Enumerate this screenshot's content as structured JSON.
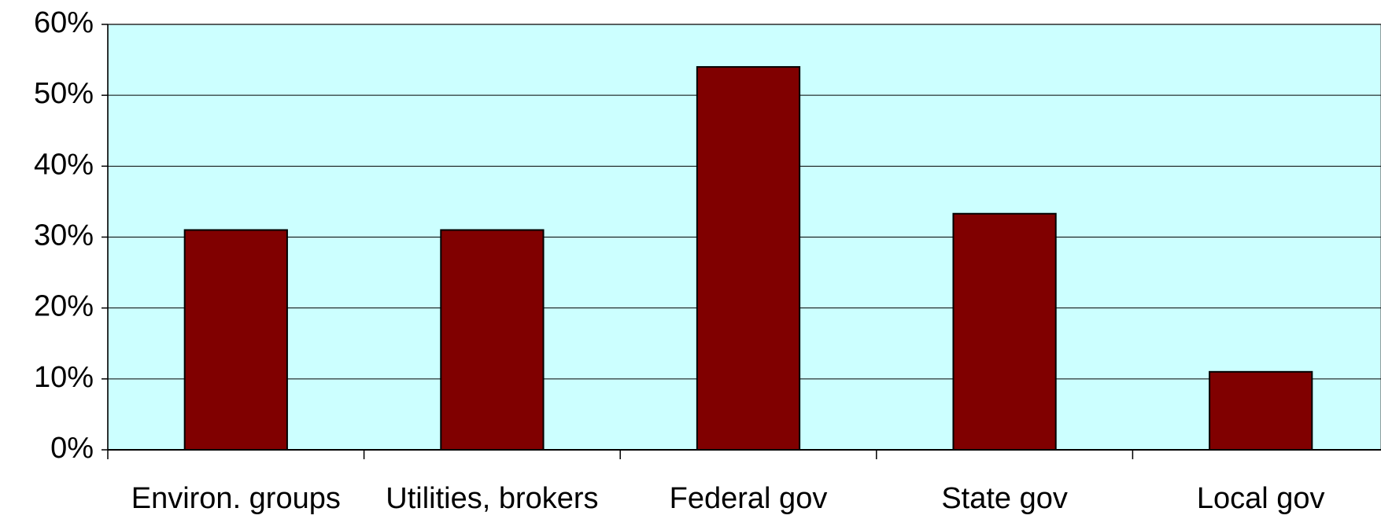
{
  "chart_data": {
    "type": "bar",
    "categories": [
      "Environ. groups",
      "Utilities, brokers",
      "Federal gov",
      "State gov",
      "Local gov"
    ],
    "values": [
      31,
      31,
      54,
      33.3,
      11
    ],
    "color": "#800000",
    "ylim": [
      0,
      60
    ],
    "yticks": [
      {
        "value": 0,
        "label": "0%"
      },
      {
        "value": 10,
        "label": "10%"
      },
      {
        "value": 20,
        "label": "20%"
      },
      {
        "value": 30,
        "label": "30%"
      },
      {
        "value": 40,
        "label": "40%"
      },
      {
        "value": 50,
        "label": "50%"
      },
      {
        "value": 60,
        "label": "60%"
      }
    ],
    "grid": true
  }
}
